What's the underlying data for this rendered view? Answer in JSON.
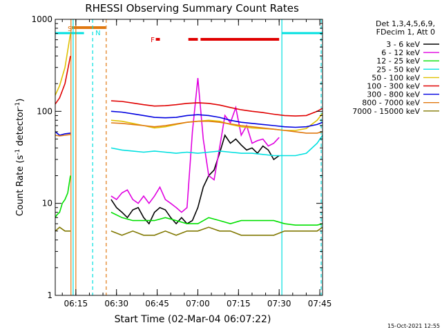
{
  "chart_data": {
    "type": "line",
    "title": "RHESSI Observing Summary Count Rates",
    "xlabel": "Start Time (02-Mar-04 06:07:22)",
    "ylabel": "Count Rate (s⁻¹ detector⁻¹)",
    "ylabel_parts": [
      "Count Rate (s",
      "-1",
      " detector",
      "-1",
      ")"
    ],
    "yscale": "log",
    "ylim": [
      1,
      1000
    ],
    "xlim_min": [
      367.4,
      466
    ],
    "xticks": [
      {
        "t": 375,
        "label": "06:15"
      },
      {
        "t": 390,
        "label": "06:30"
      },
      {
        "t": 405,
        "label": "06:45"
      },
      {
        "t": 420,
        "label": "07:00"
      },
      {
        "t": 435,
        "label": "07:15"
      },
      {
        "t": 450,
        "label": "07:30"
      },
      {
        "t": 465,
        "label": "07:45"
      }
    ],
    "yticks": [
      {
        "v": 1,
        "label": "1"
      },
      {
        "v": 10,
        "label": "10"
      },
      {
        "v": 100,
        "label": "100"
      },
      {
        "v": 1000,
        "label": "1000"
      }
    ],
    "legend_header": [
      "Det 1,3,4,5,6,9,",
      "FDecim 1, Att 0"
    ],
    "legend_position": "right",
    "timestamp": "15-Oct-2021 12:55",
    "flags": {
      "saa_label": "S",
      "night_label": "N",
      "flare_label": "F",
      "saa_color": "#e07810",
      "night_color": "#00e0e0",
      "flare_color": "#e00000",
      "saa_bar": [
        373.5,
        386
      ],
      "night_bars": [
        [
          367.4,
          378
        ],
        [
          451,
          466
        ]
      ],
      "flare_bars": [
        [
          404.5,
          406
        ],
        [
          416.5,
          420
        ],
        [
          421,
          450
        ]
      ]
    },
    "vlines": [
      {
        "t": 373.2,
        "color": "#e07810",
        "style": "solid"
      },
      {
        "t": 375.0,
        "color": "#e07810",
        "style": "solid"
      },
      {
        "t": 386.2,
        "color": "#e07810",
        "style": "dash"
      },
      {
        "t": 374.0,
        "color": "#00e0e0",
        "style": "solid"
      },
      {
        "t": 381.2,
        "color": "#00e0e0",
        "style": "dash"
      },
      {
        "t": 451.0,
        "color": "#00e0e0",
        "style": "solid"
      },
      {
        "t": 465.5,
        "color": "#00e0e0",
        "style": "dash"
      }
    ],
    "series": [
      {
        "name": "3 - 6 keV",
        "color": "#000000",
        "x": [
          388,
          390,
          392,
          394,
          396,
          398,
          400,
          402,
          404,
          406,
          408,
          410,
          412,
          414,
          416,
          418,
          420,
          422,
          424,
          426,
          428,
          430,
          432,
          434,
          436,
          438,
          440,
          442,
          444,
          446,
          448,
          450
        ],
        "y": [
          11,
          9,
          8,
          7,
          8.5,
          9,
          7,
          6,
          8,
          9,
          8.5,
          7,
          6,
          7,
          6,
          6.5,
          9,
          15,
          20,
          23,
          35,
          55,
          45,
          50,
          43,
          38,
          40,
          35,
          42,
          38,
          30,
          33
        ]
      },
      {
        "name": "6 - 12 keV",
        "color": "#e000e0",
        "x": [
          388,
          390,
          392,
          394,
          396,
          398,
          400,
          402,
          404,
          406,
          408,
          410,
          412,
          414,
          416,
          418,
          420,
          422,
          424,
          426,
          428,
          430,
          432,
          434,
          436,
          438,
          440,
          442,
          444,
          446,
          448,
          450
        ],
        "y": [
          12,
          11,
          13,
          14,
          11,
          10,
          12,
          10,
          12,
          15,
          11,
          10,
          9,
          8,
          9,
          60,
          230,
          50,
          20,
          18,
          40,
          90,
          75,
          110,
          55,
          70,
          45,
          48,
          50,
          42,
          45,
          52
        ]
      },
      {
        "name": "12 - 25 keV",
        "color": "#00e000",
        "x": [
          367.4,
          368,
          369,
          370,
          371,
          372,
          373,
          388,
          392,
          396,
          400,
          404,
          408,
          412,
          416,
          420,
          424,
          428,
          432,
          436,
          440,
          444,
          448,
          452,
          456,
          460,
          464,
          466
        ],
        "y": [
          7,
          7.5,
          8,
          10,
          11,
          13,
          20,
          8,
          7,
          6.5,
          6.5,
          6.5,
          7,
          6.5,
          6,
          6,
          7,
          6.5,
          6,
          6.5,
          6.5,
          6.5,
          6.5,
          6,
          5.8,
          5.8,
          5.8,
          6
        ]
      },
      {
        "name": "25 - 50 keV",
        "color": "#00e0e0",
        "x": [
          388,
          392,
          396,
          400,
          404,
          408,
          412,
          416,
          420,
          424,
          428,
          432,
          436,
          440,
          444,
          448,
          452,
          456,
          460,
          464,
          466
        ],
        "y": [
          40,
          38,
          37,
          36,
          37,
          36,
          35,
          36,
          35,
          36,
          37,
          36,
          35,
          35,
          34,
          33,
          33,
          33,
          35,
          45,
          55
        ]
      },
      {
        "name": "50 - 100 keV",
        "color": "#e0c000",
        "x": [
          367.4,
          369,
          371,
          373,
          388,
          392,
          396,
          400,
          404,
          408,
          412,
          416,
          420,
          424,
          428,
          432,
          436,
          440,
          444,
          448,
          452,
          456,
          460,
          464,
          466
        ],
        "y": [
          150,
          190,
          300,
          700,
          80,
          78,
          74,
          70,
          66,
          68,
          72,
          76,
          78,
          80,
          78,
          72,
          68,
          66,
          65,
          64,
          62,
          62,
          65,
          80,
          95
        ]
      },
      {
        "name": "100 - 300 keV",
        "color": "#e00000",
        "x": [
          367.4,
          369,
          371,
          373,
          388,
          392,
          396,
          400,
          404,
          408,
          412,
          416,
          420,
          424,
          428,
          432,
          436,
          440,
          444,
          448,
          452,
          456,
          460,
          464,
          466
        ],
        "y": [
          120,
          140,
          200,
          400,
          130,
          128,
          123,
          118,
          114,
          115,
          118,
          122,
          124,
          122,
          117,
          110,
          104,
          100,
          97,
          93,
          90,
          89,
          90,
          100,
          108
        ]
      },
      {
        "name": "300 - 800 keV",
        "color": "#0000e0",
        "x": [
          367.4,
          369,
          371,
          373,
          388,
          392,
          396,
          400,
          404,
          408,
          412,
          416,
          420,
          424,
          428,
          432,
          436,
          440,
          444,
          448,
          452,
          456,
          460,
          464,
          466
        ],
        "y": [
          60,
          55,
          57,
          58,
          100,
          98,
          94,
          90,
          86,
          85,
          86,
          90,
          92,
          90,
          86,
          80,
          76,
          74,
          72,
          70,
          68,
          67,
          68,
          72,
          76
        ]
      },
      {
        "name": "800 - 7000 keV",
        "color": "#e07810",
        "x": [
          367.4,
          369,
          371,
          373,
          388,
          392,
          396,
          400,
          404,
          408,
          412,
          416,
          420,
          424,
          428,
          432,
          436,
          440,
          444,
          448,
          452,
          456,
          460,
          464,
          466
        ],
        "y": [
          55,
          54,
          55,
          56,
          75,
          74,
          72,
          70,
          68,
          70,
          73,
          76,
          78,
          78,
          76,
          73,
          70,
          68,
          66,
          64,
          62,
          60,
          58,
          58,
          60
        ]
      },
      {
        "name": "7000 - 15000 keV",
        "color": "#807800",
        "x": [
          367.4,
          369,
          371,
          373,
          388,
          392,
          396,
          400,
          404,
          408,
          412,
          416,
          420,
          424,
          428,
          432,
          436,
          440,
          444,
          448,
          452,
          456,
          460,
          464,
          466
        ],
        "y": [
          5,
          5.5,
          5,
          5,
          5,
          4.5,
          5,
          4.5,
          4.5,
          5,
          4.5,
          5,
          5,
          5.5,
          5,
          5,
          4.5,
          4.5,
          4.5,
          4.5,
          5,
          5,
          5,
          5,
          5.5
        ]
      }
    ]
  }
}
